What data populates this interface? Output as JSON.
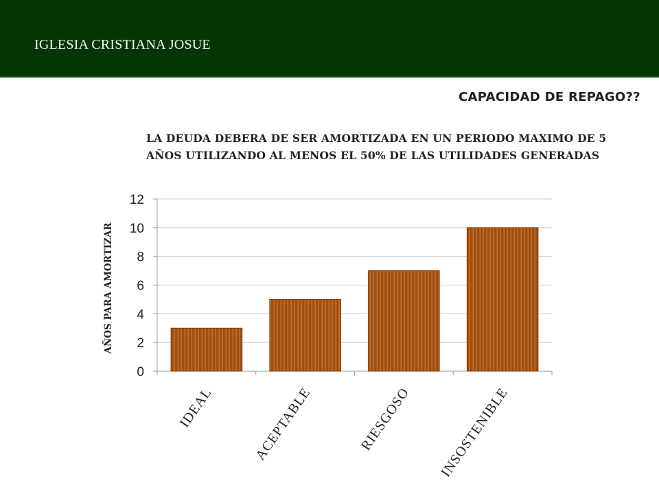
{
  "header": {
    "org_name": "IGLESIA CRISTIANA JOSUE",
    "background_color": "#043606"
  },
  "slide": {
    "title": "CAPACIDAD DE REPAGO??",
    "subtitle": "LA DEUDA DEBERA DE SER AMORTIZADA EN UN PERIODO MAXIMO DE 5 AÑOS UTILIZANDO AL MENOS EL 50% DE LAS UTILIDADES GENERADAS"
  },
  "chart_data": {
    "type": "bar",
    "categories": [
      "IDEAL",
      "ACEPTABLE",
      "RIESGOSO",
      "INSOSTENIBLE"
    ],
    "values": [
      3,
      5,
      7,
      10
    ],
    "xlabel": "",
    "ylabel": "AÑOS PARA AMORTIZAR",
    "ylim": [
      0,
      12
    ],
    "yticks": [
      0,
      2,
      4,
      6,
      8,
      10,
      12
    ],
    "grid": true,
    "legend": "none",
    "bar_color": "#a0500e",
    "bar_stripe_color": "#c9773a"
  }
}
